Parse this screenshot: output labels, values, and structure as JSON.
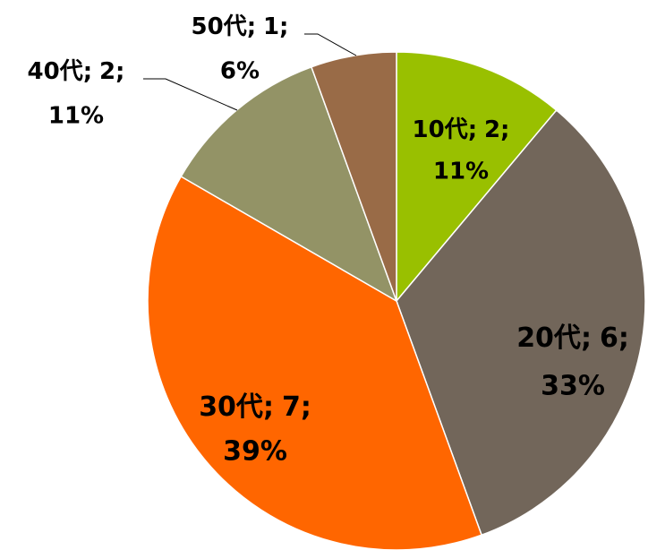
{
  "chart_data": {
    "type": "pie",
    "categories": [
      "10代",
      "20代",
      "30代",
      "40代",
      "50代"
    ],
    "values": [
      2,
      6,
      7,
      2,
      1
    ],
    "percent_labels": [
      "11%",
      "33%",
      "39%",
      "11%",
      "6%"
    ],
    "separator": ";",
    "colors": [
      "#99c000",
      "#72665a",
      "#ff6600",
      "#939366",
      "#996b47"
    ]
  }
}
